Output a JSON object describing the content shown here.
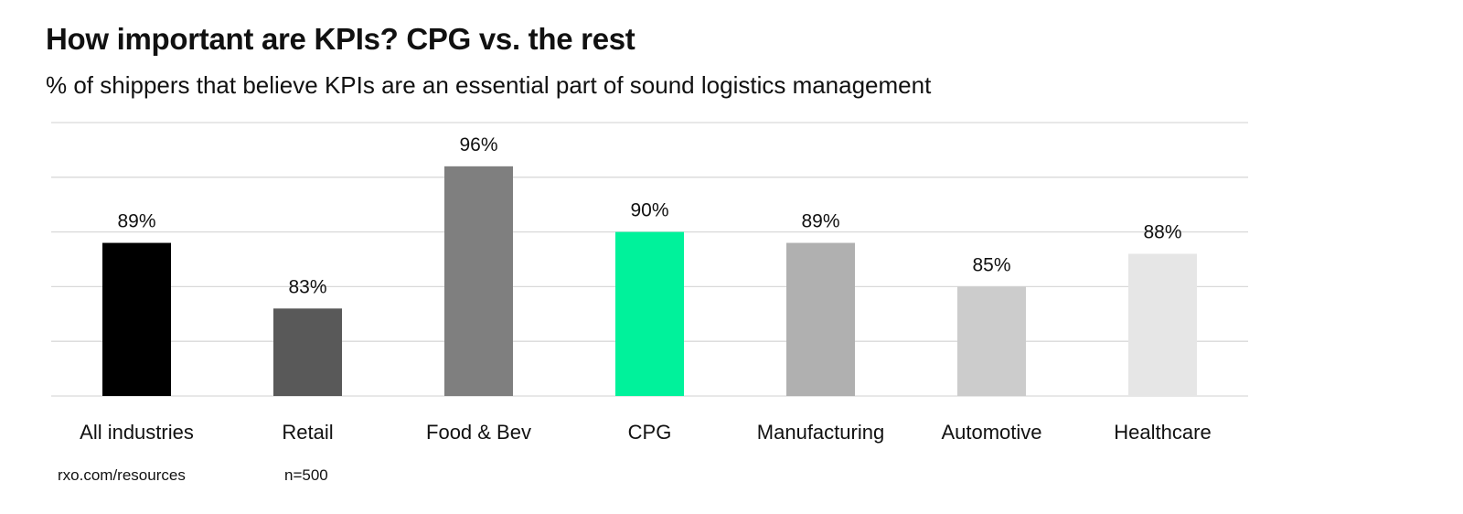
{
  "chart_data": {
    "type": "bar",
    "title": "How important are KPIs? CPG vs. the rest",
    "subtitle": "% of shippers that believe KPIs are an essential part of sound logistics management",
    "categories": [
      "All industries",
      "Retail",
      "Food & Bev",
      "CPG",
      "Manufacturing",
      "Automotive",
      "Healthcare"
    ],
    "values": [
      89,
      83,
      96,
      90,
      89,
      85,
      88
    ],
    "data_labels": [
      "89%",
      "83%",
      "96%",
      "90%",
      "89%",
      "85%",
      "88%"
    ],
    "colors": [
      "#000000",
      "#595959",
      "#7f7f7f",
      "#00f29b",
      "#b0b0b0",
      "#cccccc",
      "#e6e6e6"
    ],
    "ylim": [
      75,
      100
    ],
    "ytick_step": 5,
    "grid": true,
    "xlabel": "",
    "ylabel": ""
  },
  "footer": {
    "source": "rxo.com/resources",
    "sample": "n=500"
  }
}
